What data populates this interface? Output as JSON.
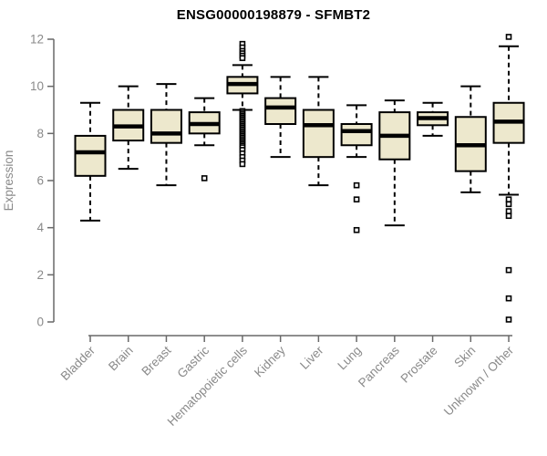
{
  "chart_data": {
    "type": "boxplot",
    "title": "ENSG00000198879 - SFMBT2",
    "ylabel": "Expression",
    "xlabel": "",
    "ylim": [
      0,
      12
    ],
    "yticks": [
      0,
      2,
      4,
      6,
      8,
      10,
      12
    ],
    "grid": false,
    "legend": "none",
    "categories": [
      "Bladder",
      "Brain",
      "Breast",
      "Gastric",
      "Hematopoietic cells",
      "Kidney",
      "Liver",
      "Lung",
      "Pancreas",
      "Prostate",
      "Skin",
      "Unknown / Other"
    ],
    "boxes": [
      {
        "category": "Bladder",
        "whisker_low": 4.3,
        "q1": 6.2,
        "median": 7.2,
        "q3": 7.9,
        "whisker_high": 9.3,
        "outliers": []
      },
      {
        "category": "Brain",
        "whisker_low": 6.5,
        "q1": 7.7,
        "median": 8.3,
        "q3": 9.0,
        "whisker_high": 10.0,
        "outliers": []
      },
      {
        "category": "Breast",
        "whisker_low": 5.8,
        "q1": 7.6,
        "median": 8.0,
        "q3": 9.0,
        "whisker_high": 10.1,
        "outliers": []
      },
      {
        "category": "Gastric",
        "whisker_low": 7.5,
        "q1": 8.0,
        "median": 8.4,
        "q3": 8.9,
        "whisker_high": 9.5,
        "outliers": [
          6.1
        ]
      },
      {
        "category": "Hematopoietic cells",
        "whisker_low": 9.0,
        "q1": 9.7,
        "median": 10.1,
        "q3": 10.4,
        "whisker_high": 10.9,
        "outliers": [
          11.8,
          11.65,
          11.5,
          11.4,
          11.3,
          11.2,
          8.95,
          8.88,
          8.81,
          8.74,
          8.67,
          8.6,
          8.53,
          8.46,
          8.39,
          8.32,
          8.25,
          8.18,
          8.11,
          8.04,
          7.97,
          7.9,
          7.83,
          7.76,
          7.69,
          7.62,
          7.55,
          7.48,
          7.41,
          7.3,
          7.15,
          7.0,
          6.85,
          6.7
        ]
      },
      {
        "category": "Kidney",
        "whisker_low": 7.0,
        "q1": 8.4,
        "median": 9.1,
        "q3": 9.5,
        "whisker_high": 10.4,
        "outliers": []
      },
      {
        "category": "Liver",
        "whisker_low": 5.8,
        "q1": 7.0,
        "median": 8.35,
        "q3": 9.0,
        "whisker_high": 10.4,
        "outliers": []
      },
      {
        "category": "Lung",
        "whisker_low": 7.0,
        "q1": 7.5,
        "median": 8.1,
        "q3": 8.4,
        "whisker_high": 9.2,
        "outliers": [
          5.8,
          5.2,
          3.9
        ]
      },
      {
        "category": "Pancreas",
        "whisker_low": 4.1,
        "q1": 6.9,
        "median": 7.9,
        "q3": 8.9,
        "whisker_high": 9.4,
        "outliers": []
      },
      {
        "category": "Prostate",
        "whisker_low": 7.9,
        "q1": 8.35,
        "median": 8.65,
        "q3": 8.9,
        "whisker_high": 9.3,
        "outliers": []
      },
      {
        "category": "Skin",
        "whisker_low": 5.5,
        "q1": 6.4,
        "median": 7.5,
        "q3": 8.7,
        "whisker_high": 10.0,
        "outliers": []
      },
      {
        "category": "Unknown / Other",
        "whisker_low": 5.4,
        "q1": 7.6,
        "median": 8.5,
        "q3": 9.3,
        "whisker_high": 11.7,
        "outliers": [
          12.1,
          5.2,
          5.0,
          4.7,
          4.5,
          2.2,
          1.0,
          0.1
        ]
      }
    ],
    "colors": {
      "box_fill": "#EDE8CD",
      "box_border": "#000000",
      "median": "#000000",
      "whisker": "#000000",
      "outlier_stroke": "#000000",
      "outlier_fill": "#ffffff",
      "axis_line": "#696969",
      "tick_label": "#8a8a8a",
      "title": "#000000",
      "background": "#ffffff"
    }
  }
}
